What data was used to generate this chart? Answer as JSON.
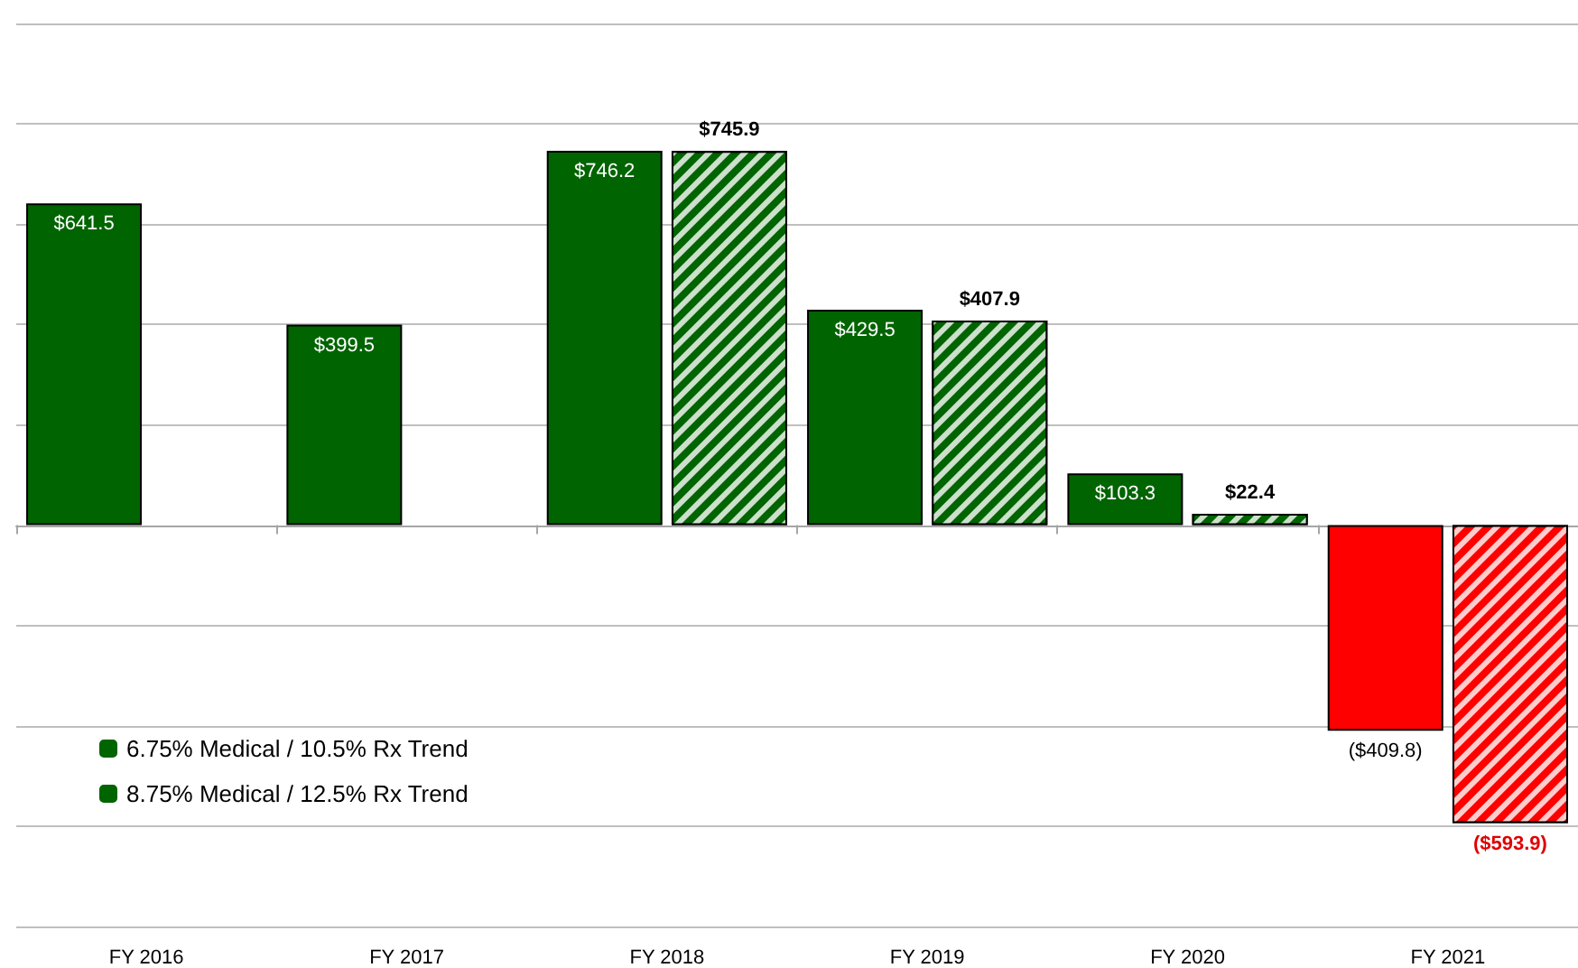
{
  "chart_data": {
    "type": "bar",
    "categories": [
      "FY 2016",
      "FY 2017",
      "FY 2018",
      "FY 2019",
      "FY 2020",
      "FY 2021"
    ],
    "series": [
      {
        "name": "6.75% Medical / 10.5% Rx Trend",
        "color": "#006400",
        "colors": [
          "#006400",
          "#006400",
          "#006400",
          "#006400",
          "#006400",
          "#ff0000"
        ],
        "values": [
          641.5,
          399.5,
          746.2,
          429.5,
          103.3,
          -409.8
        ],
        "value_labels": [
          "$641.5",
          "$399.5",
          "$746.2",
          "$429.5",
          "$103.3",
          "($409.8)"
        ]
      },
      {
        "name": "8.75% Medical / 12.5% Rx Trend",
        "color": "#006400",
        "colors": [
          null,
          null,
          "#006400",
          "#006400",
          "#006400",
          "#ff0000"
        ],
        "values": [
          null,
          null,
          745.9,
          407.9,
          22.4,
          -593.9
        ],
        "value_labels": [
          null,
          null,
          "$745.9",
          "$407.9",
          "$22.4",
          "($593.9)"
        ]
      }
    ],
    "ylim": [
      -800,
      1000
    ],
    "grid": "y",
    "tick_labels": "x",
    "legend": "bottom left"
  }
}
